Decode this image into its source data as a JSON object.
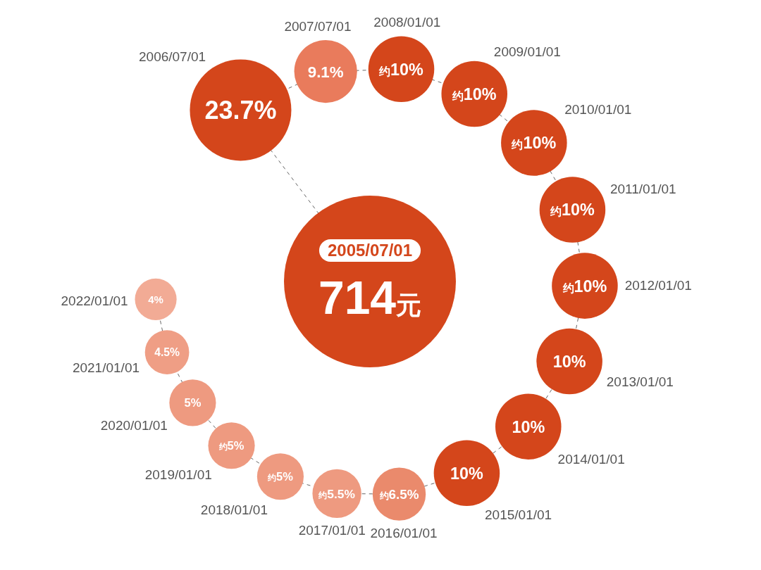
{
  "chart_data": {
    "type": "other",
    "categories": [
      "2006/07/01",
      "2007/07/01",
      "2008/01/01",
      "2009/01/01",
      "2010/01/01",
      "2011/01/01",
      "2012/01/01",
      "2013/01/01",
      "2014/01/01",
      "2015/01/01",
      "2016/01/01",
      "2017/01/01",
      "2018/01/01",
      "2019/01/01",
      "2020/01/01",
      "2021/01/01",
      "2022/01/01"
    ],
    "values": [
      23.7,
      9.1,
      10,
      10,
      10,
      10,
      10,
      10,
      10,
      10,
      6.5,
      5.5,
      5,
      5,
      5,
      4.5,
      4
    ],
    "value_labels": [
      "23.7%",
      "9.1%",
      "约10%",
      "约10%",
      "约10%",
      "约10%",
      "约10%",
      "10%",
      "10%",
      "10%",
      "约6.5%",
      "约5.5%",
      "约5%",
      "约5%",
      "5%",
      "4.5%",
      "4%"
    ],
    "colors": [
      "#d4461b",
      "#e97b5c",
      "#d4461b",
      "#d4461b",
      "#d4461b",
      "#d4461b",
      "#d4461b",
      "#d4461b",
      "#d4461b",
      "#d4461b",
      "#ea8a6c",
      "#ee9a80",
      "#ee9a80",
      "#ee9a80",
      "#ee9a80",
      "#ef9e85",
      "#f2ab95"
    ],
    "annotations": [
      "2005/07/01",
      "714元"
    ]
  }
}
